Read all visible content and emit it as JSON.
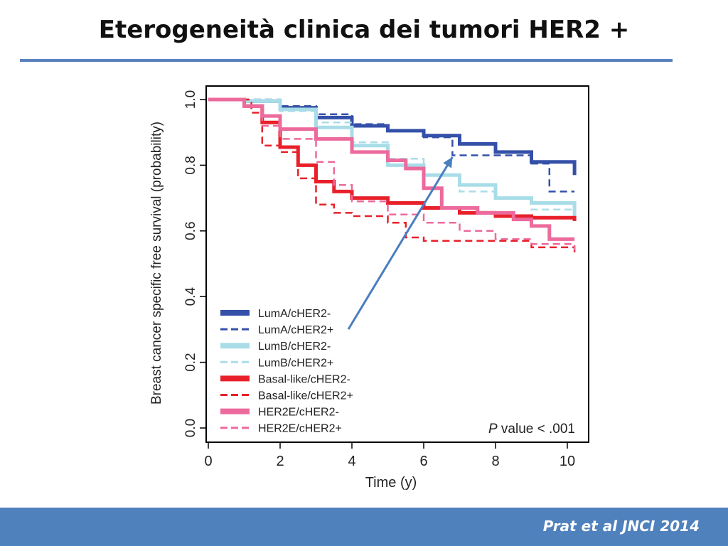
{
  "slide": {
    "title": "Eterogeneità clinica dei tumori HER2 +",
    "citation": "Prat et al JNCI 2014"
  },
  "colors": {
    "rule": "#5b82bd",
    "footer": "#4f81bd",
    "arrow": "#4a7ebf"
  },
  "chart_data": {
    "type": "line",
    "subtype": "kaplan-meier step",
    "title": "",
    "xlabel": "Time (y)",
    "ylabel": "Breast cancer specific free survival (probability)",
    "xlim": [
      0,
      10.2
    ],
    "ylim": [
      0,
      1.02
    ],
    "xticks": [
      0,
      2,
      4,
      6,
      8,
      10
    ],
    "yticks": [
      0.0,
      0.2,
      0.4,
      0.6,
      0.8,
      1.0
    ],
    "xtick_labels": [
      "0",
      "2",
      "4",
      "6",
      "8",
      "10"
    ],
    "ytick_labels": [
      "0.0",
      "0.2",
      "0.4",
      "0.6",
      "0.8",
      "1.0"
    ],
    "annotation": {
      "italic": "P",
      "text": " value < .001"
    },
    "arrow_annotation": {
      "from_series": "LumA/cHER2+",
      "to": [
        6.8,
        0.825
      ]
    },
    "legend_position": "bottom-left",
    "grid": false,
    "series": [
      {
        "name": "LumA/cHER2-",
        "color": "#3450a8",
        "style": "solid",
        "x": [
          0,
          1,
          2,
          3,
          4,
          5,
          6,
          7,
          8,
          9,
          10.2
        ],
        "y": [
          1.0,
          0.995,
          0.975,
          0.945,
          0.92,
          0.905,
          0.89,
          0.865,
          0.84,
          0.81,
          0.77
        ]
      },
      {
        "name": "LumA/cHER2+",
        "color": "#3450a8",
        "style": "dashed",
        "x": [
          0,
          1,
          2,
          3,
          4,
          5,
          6,
          6.8,
          7.5,
          9.0,
          9.5,
          10.2
        ],
        "y": [
          1.0,
          1.0,
          0.98,
          0.955,
          0.925,
          0.905,
          0.885,
          0.83,
          0.83,
          0.805,
          0.72,
          0.72
        ]
      },
      {
        "name": "LumB/cHER2-",
        "color": "#a8dde8",
        "style": "solid",
        "x": [
          0,
          1,
          2,
          3,
          4,
          5,
          6,
          7,
          8,
          9,
          10.2
        ],
        "y": [
          1.0,
          0.995,
          0.97,
          0.915,
          0.86,
          0.8,
          0.77,
          0.74,
          0.7,
          0.685,
          0.63
        ]
      },
      {
        "name": "LumB/cHER2+",
        "color": "#a8dde8",
        "style": "dashed",
        "x": [
          0,
          1,
          2,
          3,
          4,
          5,
          6,
          7,
          8,
          9,
          10.2
        ],
        "y": [
          1.0,
          1.0,
          0.965,
          0.93,
          0.87,
          0.82,
          0.77,
          0.72,
          0.7,
          0.665,
          0.63
        ]
      },
      {
        "name": "Basal-like/cHER2-",
        "color": "#e8202a",
        "style": "solid",
        "x": [
          0,
          1.0,
          1.5,
          2.0,
          2.5,
          3.0,
          3.5,
          4.0,
          5.0,
          6.0,
          7.0,
          8.0,
          9.0,
          10.2
        ],
        "y": [
          1.0,
          0.98,
          0.93,
          0.855,
          0.8,
          0.75,
          0.72,
          0.7,
          0.685,
          0.67,
          0.655,
          0.645,
          0.64,
          0.63
        ]
      },
      {
        "name": "Basal-like/cHER2+",
        "color": "#e8202a",
        "style": "dashed",
        "x": [
          0,
          1.2,
          1.5,
          2.0,
          2.5,
          3.0,
          3.5,
          4.0,
          5.0,
          5.5,
          6.0,
          8.0,
          9.0,
          10.2
        ],
        "y": [
          1.0,
          0.96,
          0.86,
          0.84,
          0.76,
          0.68,
          0.655,
          0.645,
          0.625,
          0.58,
          0.57,
          0.57,
          0.55,
          0.53
        ]
      },
      {
        "name": "HER2E/cHER2-",
        "color": "#ec6a9c",
        "style": "solid",
        "x": [
          0,
          1.0,
          1.5,
          2.0,
          3.0,
          4.0,
          5.0,
          5.5,
          6.0,
          6.5,
          7.5,
          8.5,
          9.0,
          9.5,
          10.2
        ],
        "y": [
          1.0,
          0.98,
          0.95,
          0.91,
          0.88,
          0.84,
          0.815,
          0.79,
          0.73,
          0.67,
          0.655,
          0.635,
          0.615,
          0.575,
          0.575
        ]
      },
      {
        "name": "HER2E/cHER2+",
        "color": "#ec6a9c",
        "style": "dashed",
        "x": [
          0,
          1.0,
          1.5,
          2.0,
          3.0,
          3.5,
          4.0,
          5.0,
          6.0,
          7.0,
          8.0,
          9.0,
          10.2
        ],
        "y": [
          1.0,
          0.98,
          0.92,
          0.88,
          0.81,
          0.74,
          0.69,
          0.65,
          0.625,
          0.6,
          0.575,
          0.56,
          0.54
        ]
      }
    ]
  }
}
